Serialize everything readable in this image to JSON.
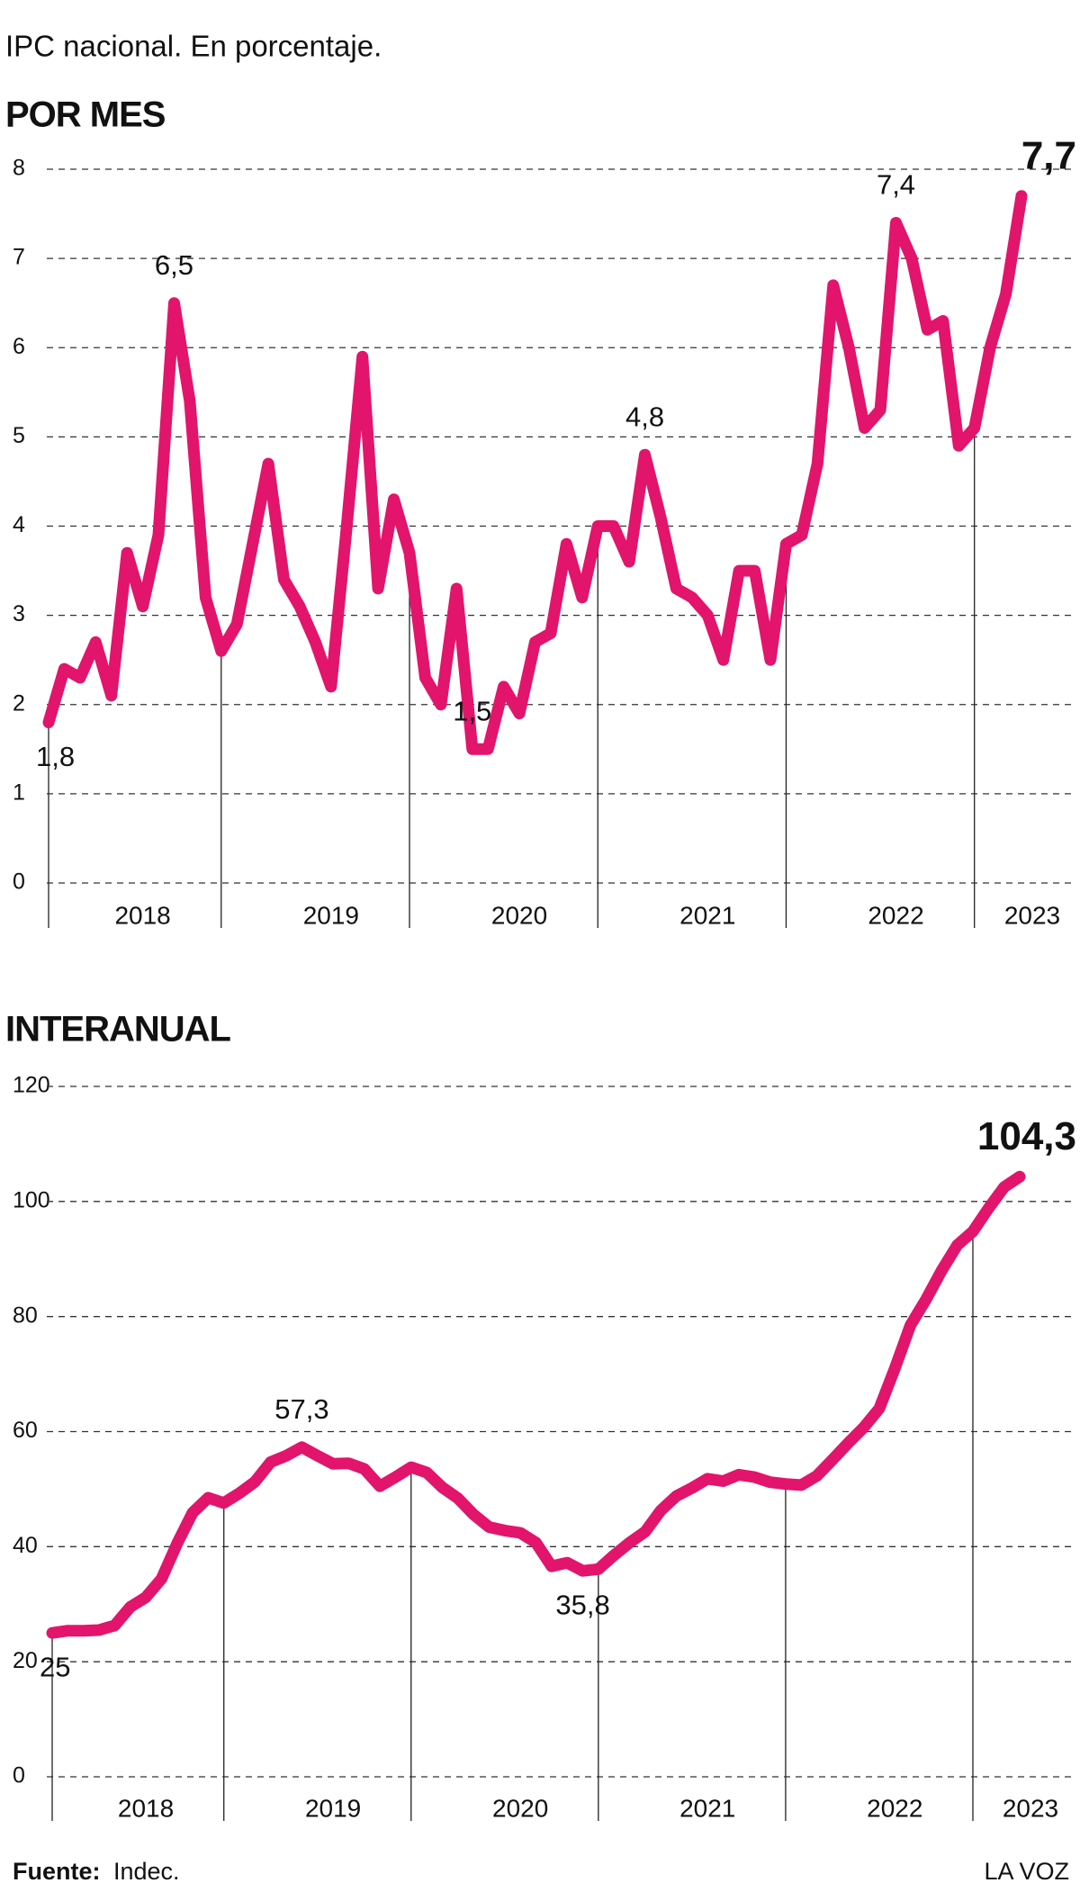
{
  "title": "IPC nacional. En porcentaje.",
  "chart_data": [
    {
      "type": "line",
      "title": "POR MES",
      "color": "#e2146c",
      "grid": true,
      "ylim": [
        0,
        8
      ],
      "yticks": [
        0,
        1,
        2,
        3,
        4,
        5,
        6,
        7,
        8
      ],
      "year_labels": [
        "2018",
        "2019",
        "2020",
        "2021",
        "2022",
        "2023"
      ],
      "values": [
        1.8,
        2.4,
        2.3,
        2.7,
        2.1,
        3.7,
        3.1,
        3.9,
        6.5,
        5.4,
        3.2,
        2.6,
        2.9,
        3.8,
        4.7,
        3.4,
        3.1,
        2.7,
        2.2,
        4.0,
        5.9,
        3.3,
        4.3,
        3.7,
        2.3,
        2.0,
        3.3,
        1.5,
        1.5,
        2.2,
        1.9,
        2.7,
        2.8,
        3.8,
        3.2,
        4.0,
        4.0,
        3.6,
        4.8,
        4.1,
        3.3,
        3.2,
        3.0,
        2.5,
        3.5,
        3.5,
        2.5,
        3.8,
        3.9,
        4.7,
        6.7,
        6.0,
        5.1,
        5.3,
        7.4,
        7.0,
        6.2,
        6.3,
        4.9,
        5.1,
        6.0,
        6.6,
        7.7
      ],
      "value_labels": [
        "1,8",
        null,
        null,
        null,
        null,
        null,
        null,
        null,
        "6,5",
        null,
        null,
        null,
        null,
        null,
        null,
        null,
        null,
        null,
        null,
        null,
        null,
        null,
        null,
        null,
        null,
        null,
        null,
        "1,5",
        null,
        null,
        null,
        null,
        null,
        null,
        null,
        null,
        null,
        null,
        "4,8",
        null,
        null,
        null,
        null,
        null,
        null,
        null,
        null,
        null,
        null,
        null,
        null,
        null,
        null,
        null,
        "7,4",
        null,
        null,
        null,
        null,
        null,
        null,
        null,
        "7,7"
      ]
    },
    {
      "type": "line",
      "title": "INTERANUAL",
      "color": "#e2146c",
      "grid": true,
      "ylim": [
        0,
        120
      ],
      "yticks": [
        0,
        20,
        40,
        60,
        80,
        100,
        120
      ],
      "year_labels": [
        "2018",
        "2019",
        "2020",
        "2021",
        "2022",
        "2023"
      ],
      "values": [
        25.0,
        25.4,
        25.4,
        25.5,
        26.3,
        29.5,
        31.2,
        34.4,
        40.5,
        45.9,
        48.5,
        47.6,
        49.3,
        51.3,
        54.7,
        55.8,
        57.3,
        55.8,
        54.4,
        54.5,
        53.5,
        50.5,
        52.1,
        53.8,
        52.9,
        50.3,
        48.4,
        45.6,
        43.4,
        42.8,
        42.4,
        40.7,
        36.6,
        37.2,
        35.8,
        36.1,
        38.5,
        40.7,
        42.6,
        46.3,
        48.8,
        50.2,
        51.8,
        51.4,
        52.5,
        52.1,
        51.2,
        50.9,
        50.7,
        52.3,
        55.1,
        58.0,
        60.7,
        64.0,
        71.0,
        78.5,
        83.0,
        88.0,
        92.4,
        94.8,
        98.8,
        102.5,
        104.3
      ],
      "value_labels": [
        "25",
        null,
        null,
        null,
        null,
        null,
        null,
        null,
        null,
        null,
        null,
        null,
        null,
        null,
        null,
        null,
        "57,3",
        null,
        null,
        null,
        null,
        null,
        null,
        null,
        null,
        null,
        null,
        null,
        null,
        null,
        null,
        null,
        null,
        null,
        "35,8",
        null,
        null,
        null,
        null,
        null,
        null,
        null,
        null,
        null,
        null,
        null,
        null,
        null,
        null,
        null,
        null,
        null,
        null,
        null,
        null,
        null,
        null,
        null,
        null,
        null,
        null,
        null,
        "104,3"
      ]
    }
  ],
  "footer": {
    "source_label": "Fuente:",
    "source": "Indec.",
    "brand": "LA VOZ"
  }
}
